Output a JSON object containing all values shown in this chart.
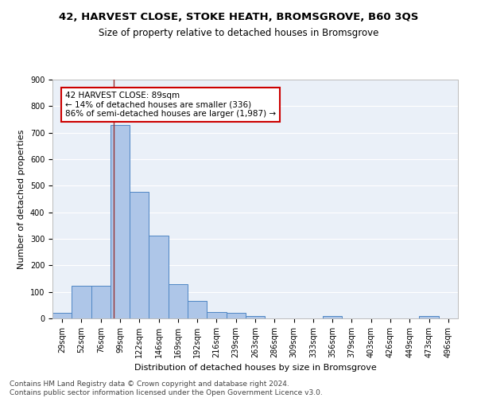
{
  "title_line1": "42, HARVEST CLOSE, STOKE HEATH, BROMSGROVE, B60 3QS",
  "title_line2": "Size of property relative to detached houses in Bromsgrove",
  "xlabel": "Distribution of detached houses by size in Bromsgrove",
  "ylabel": "Number of detached properties",
  "bar_color": "#aec6e8",
  "bar_edge_color": "#4f86c4",
  "background_color": "#eaf0f8",
  "grid_color": "#ffffff",
  "categories": [
    "29sqm",
    "52sqm",
    "76sqm",
    "99sqm",
    "122sqm",
    "146sqm",
    "169sqm",
    "192sqm",
    "216sqm",
    "239sqm",
    "263sqm",
    "286sqm",
    "309sqm",
    "333sqm",
    "356sqm",
    "379sqm",
    "403sqm",
    "426sqm",
    "449sqm",
    "473sqm",
    "496sqm"
  ],
  "values": [
    20,
    122,
    122,
    730,
    477,
    313,
    130,
    65,
    25,
    22,
    10,
    0,
    0,
    0,
    8,
    0,
    0,
    0,
    0,
    8,
    0
  ],
  "vline_x": 2.65,
  "annotation_text_line1": "42 HARVEST CLOSE: 89sqm",
  "annotation_text_line2": "← 14% of detached houses are smaller (336)",
  "annotation_text_line3": "86% of semi-detached houses are larger (1,987) →",
  "annotation_box_color": "#ffffff",
  "annotation_box_edge_color": "#cc0000",
  "vline_color": "#993333",
  "ylim": [
    0,
    900
  ],
  "yticks": [
    0,
    100,
    200,
    300,
    400,
    500,
    600,
    700,
    800,
    900
  ],
  "footer_line1": "Contains HM Land Registry data © Crown copyright and database right 2024.",
  "footer_line2": "Contains public sector information licensed under the Open Government Licence v3.0.",
  "title_fontsize": 9.5,
  "subtitle_fontsize": 8.5,
  "axis_label_fontsize": 8,
  "tick_fontsize": 7,
  "annotation_fontsize": 7.5,
  "footer_fontsize": 6.5
}
